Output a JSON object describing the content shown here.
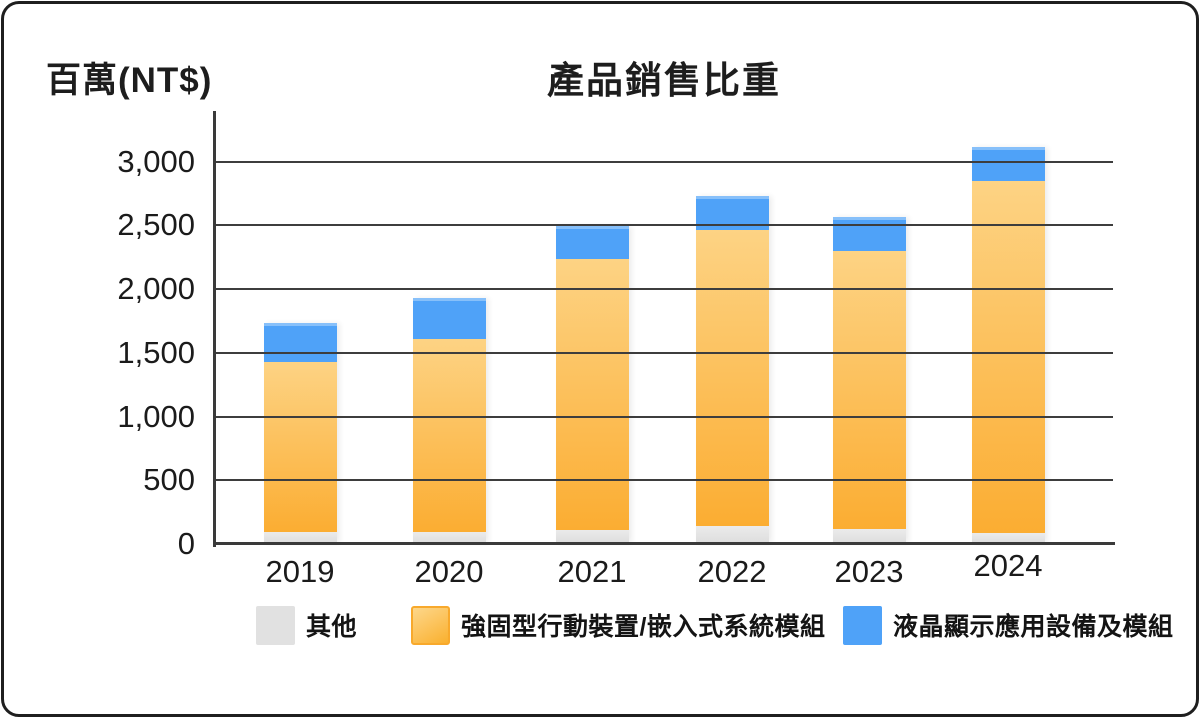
{
  "chart_data": {
    "type": "bar",
    "stacked": true,
    "title": "產品銷售比重",
    "y_unit_label": "百萬(NT$)",
    "categories": [
      "2019",
      "2020",
      "2021",
      "2022",
      "2023",
      "2024"
    ],
    "series": [
      {
        "name": "其他",
        "color": "#E1E1E1",
        "values": [
          90,
          90,
          100,
          130,
          110,
          80
        ]
      },
      {
        "name": "強固型行動裝置/嵌入式系統模組",
        "color": "#FBB43C",
        "color_gradient_top": "#FDD384",
        "color_gradient_bottom": "#FBAD32",
        "values": [
          1330,
          1510,
          2130,
          2330,
          2180,
          2760
        ]
      },
      {
        "name": "液晶顯示應用設備及模組",
        "color": "#4FA2F8",
        "values": [
          310,
          320,
          260,
          260,
          270,
          270
        ]
      }
    ],
    "totals": [
      1730,
      1920,
      2490,
      2720,
      2560,
      3110
    ],
    "yticks": {
      "values": [
        0,
        500,
        1000,
        1500,
        2000,
        2500,
        3000
      ],
      "labels": [
        "0",
        "500",
        "1,000",
        "1,500",
        "2,000",
        "2,500",
        "3,000"
      ]
    },
    "ylim": [
      0,
      3360
    ],
    "grid": "horizontal-over-bars",
    "legend_position": "bottom",
    "axis_color": "#3A3A3A",
    "text_color": "#1B1B1B"
  }
}
